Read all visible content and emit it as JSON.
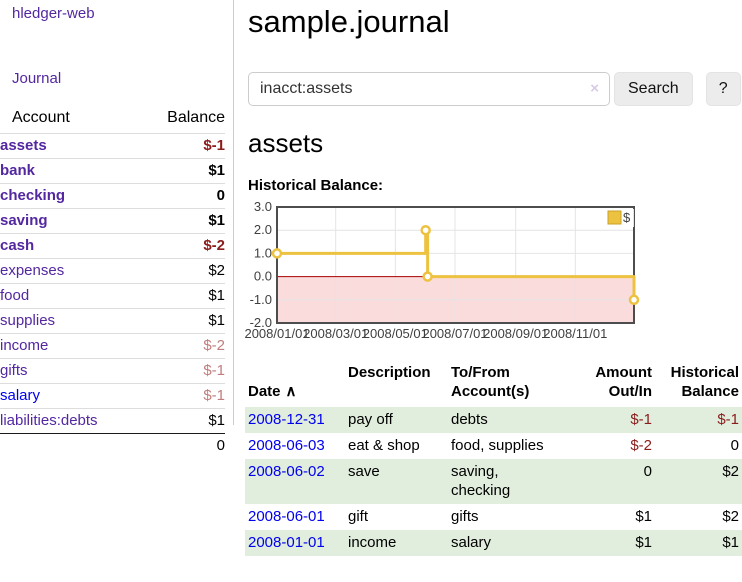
{
  "brand": "hledger-web",
  "nav": {
    "journal": "Journal"
  },
  "sidebar": {
    "col_account": "Account",
    "col_balance": "Balance",
    "accounts": [
      {
        "name": "assets",
        "depth": 1,
        "balance": "$-1",
        "emphasis": true,
        "balance_tone": "negative"
      },
      {
        "name": "bank",
        "depth": 2,
        "balance": "$1",
        "emphasis": true,
        "balance_tone": "normal"
      },
      {
        "name": "checking",
        "depth": 3,
        "balance": "0",
        "emphasis": true,
        "balance_tone": "normal"
      },
      {
        "name": "saving",
        "depth": 3,
        "balance": "$1",
        "emphasis": true,
        "balance_tone": "normal"
      },
      {
        "name": "cash",
        "depth": 2,
        "balance": "$-2",
        "emphasis": true,
        "balance_tone": "negative"
      },
      {
        "name": "expenses",
        "depth": 1,
        "balance": "$2",
        "emphasis": false,
        "balance_tone": "normal"
      },
      {
        "name": "food",
        "depth": 2,
        "balance": "$1",
        "emphasis": false,
        "balance_tone": "normal"
      },
      {
        "name": "supplies",
        "depth": 2,
        "balance": "$1",
        "emphasis": false,
        "balance_tone": "normal"
      },
      {
        "name": "income",
        "depth": 1,
        "balance": "$-2",
        "emphasis": false,
        "balance_tone": "negative-faded"
      },
      {
        "name": "gifts",
        "depth": 2,
        "balance": "$-1",
        "emphasis": false,
        "balance_tone": "negative-faded"
      },
      {
        "name": "salary",
        "depth": 2,
        "balance": "$-1",
        "emphasis": false,
        "balance_tone": "negative-faded"
      },
      {
        "name": "liabilities:debts",
        "depth": 1,
        "balance": "$1",
        "emphasis": false,
        "balance_tone": "normal"
      }
    ],
    "total": "0"
  },
  "page": {
    "title": "sample.journal"
  },
  "search": {
    "query": "inacct:assets",
    "clear_icon": "×",
    "search_button": "Search",
    "help_button": "?"
  },
  "account_page": {
    "heading": "assets",
    "chart_title": "Historical Balance:"
  },
  "chart_data": {
    "type": "line",
    "title": "Historical Balance",
    "style": "step-after",
    "x_range": [
      "2008-01-01",
      "2008-12-31"
    ],
    "ylim": [
      -2,
      3
    ],
    "y_ticks": [
      "3.0",
      "2.0",
      "1.0",
      "0.0",
      "-1.0",
      "-2.0"
    ],
    "x_ticks": [
      {
        "date": "2008-01-01",
        "label": "2008/01/01"
      },
      {
        "date": "2008-03-01",
        "label": "2008/03/01"
      },
      {
        "date": "2008-05-01",
        "label": "2008/05/01"
      },
      {
        "date": "2008-07-01",
        "label": "2008/07/01"
      },
      {
        "date": "2008-09-01",
        "label": "2008/09/01"
      },
      {
        "date": "2008-11-01",
        "label": "2008/11/01"
      }
    ],
    "series": [
      {
        "name": "$",
        "color": "#edc240",
        "points": [
          {
            "date": "2008-01-01",
            "value": 1
          },
          {
            "date": "2008-06-01",
            "value": 2
          },
          {
            "date": "2008-06-03",
            "value": 0
          },
          {
            "date": "2008-12-31",
            "value": -1
          }
        ]
      }
    ],
    "grid": true,
    "legend_position": "top-right",
    "negative_region_color": "#fbdcdc",
    "zero_line_color": "#a40000",
    "grid_color": "#e4e4e4",
    "border_color": "#4d4d4d"
  },
  "register": {
    "headers": {
      "date": "Date",
      "sort_indicator": "∧",
      "description": "Description",
      "accounts": "To/From\nAccount(s)",
      "amount": "Amount\nOut/In",
      "balance": "Historical\nBalance"
    },
    "rows": [
      {
        "date": "2008-12-31",
        "description": "pay off",
        "accounts": "debts",
        "amount": "$-1",
        "balance": "$-1"
      },
      {
        "date": "2008-06-03",
        "description": "eat & shop",
        "accounts": "food, supplies",
        "amount": "$-2",
        "balance": "0"
      },
      {
        "date": "2008-06-02",
        "description": "save",
        "accounts": "saving,\nchecking",
        "amount": "0",
        "balance": "$2"
      },
      {
        "date": "2008-06-01",
        "description": "gift",
        "accounts": "gifts",
        "amount": "$1",
        "balance": "$2"
      },
      {
        "date": "2008-01-01",
        "description": "income",
        "accounts": "salary",
        "amount": "$1",
        "balance": "$1"
      }
    ]
  },
  "colors": {
    "link_purple": "#5327a0",
    "link_blue": "#0000ee",
    "negative": "#8b1c1c",
    "negative_faded": "#c17d7d",
    "row_stripe_green": "#e1eedd",
    "series_gold": "#edc240"
  }
}
